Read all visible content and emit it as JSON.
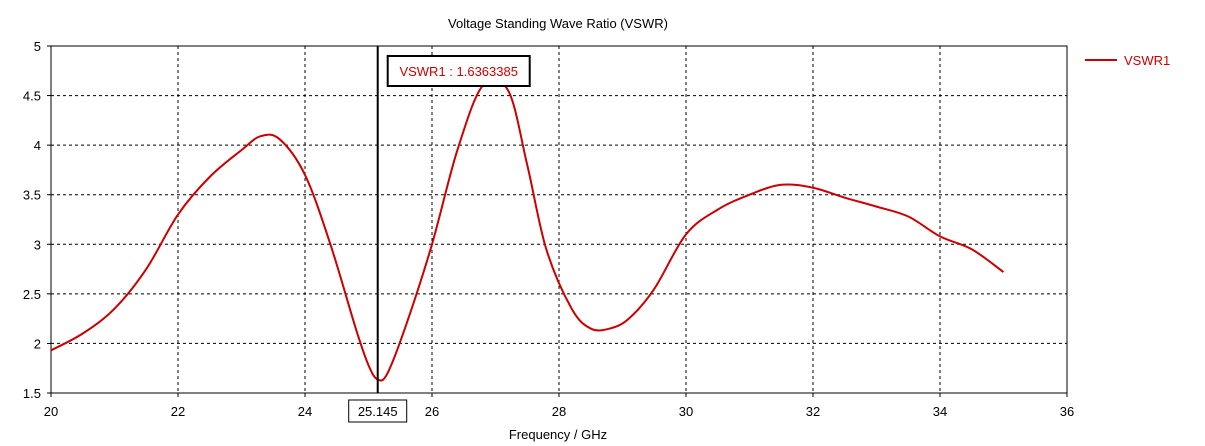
{
  "chart_data": {
    "type": "line",
    "title": "Voltage Standing Wave Ratio (VSWR)",
    "xlabel": "Frequency / GHz",
    "ylabel": "",
    "xlim": [
      20,
      36
    ],
    "ylim": [
      1.5,
      5
    ],
    "x_ticks": [
      "20",
      "22",
      "24",
      "26",
      "28",
      "30",
      "32",
      "34",
      "36"
    ],
    "y_ticks": [
      "1.5",
      "2",
      "2.5",
      "3",
      "3.5",
      "4",
      "4.5",
      "5"
    ],
    "grid": true,
    "legend_position": "right",
    "series": [
      {
        "name": "VSWR1",
        "color": "#cc0000",
        "x": [
          20.0,
          20.5,
          21.0,
          21.5,
          22.0,
          22.5,
          23.0,
          23.3,
          23.6,
          24.0,
          24.4,
          24.8,
          25.0,
          25.145,
          25.3,
          25.6,
          26.0,
          26.4,
          26.8,
          27.2,
          27.5,
          27.8,
          28.2,
          28.5,
          28.8,
          29.1,
          29.5,
          30.0,
          30.5,
          31.0,
          31.5,
          32.0,
          32.5,
          33.0,
          33.5,
          34.0,
          34.5,
          35.0
        ],
        "y": [
          1.93,
          2.1,
          2.35,
          2.75,
          3.3,
          3.68,
          3.95,
          4.09,
          4.06,
          3.7,
          3.0,
          2.15,
          1.78,
          1.636,
          1.7,
          2.2,
          3.0,
          3.95,
          4.6,
          4.55,
          3.8,
          2.95,
          2.35,
          2.15,
          2.15,
          2.25,
          2.55,
          3.1,
          3.35,
          3.5,
          3.6,
          3.57,
          3.47,
          3.38,
          3.28,
          3.08,
          2.95,
          2.72
        ]
      }
    ],
    "marker": {
      "label": "VSWR1 : 1.6363385",
      "x": 25.145,
      "x_label": "25.145"
    }
  }
}
